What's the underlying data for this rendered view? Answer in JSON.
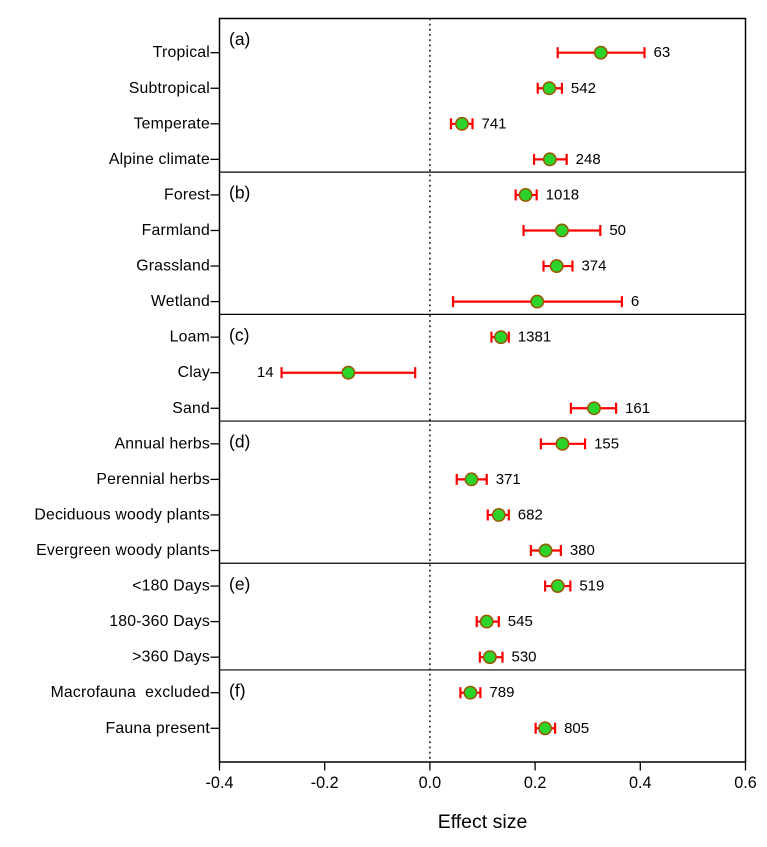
{
  "chart_data": {
    "type": "scatter",
    "subtype": "forest-plot-with-error-bars",
    "title": "",
    "xlabel": "Effect size",
    "xlim": [
      -0.4,
      0.6
    ],
    "xticks": [
      {
        "value": -0.4,
        "label": "-0.4"
      },
      {
        "value": -0.2,
        "label": "-0.2"
      },
      {
        "value": 0.0,
        "label": "0.0"
      },
      {
        "value": 0.2,
        "label": "0.2"
      },
      {
        "value": 0.4,
        "label": "0.4"
      },
      {
        "value": 0.6,
        "label": "0.6"
      }
    ],
    "zero_reference_line": 0.0,
    "grid": false,
    "legend": "none",
    "colors": {
      "error_bar": "#fe0000",
      "point_fill": "#2bd32b",
      "point_edge": "#995500",
      "axis": "#000000",
      "text": "#000000",
      "background": "#ffffff"
    },
    "panels": [
      {
        "tag": "(a)",
        "rows": [
          {
            "label": "Tropical",
            "est": 0.325,
            "lo": 0.243,
            "hi": 0.408,
            "n": "63",
            "n_side": "right"
          },
          {
            "label": "Subtropical",
            "est": 0.227,
            "lo": 0.205,
            "hi": 0.251,
            "n": "542",
            "n_side": "right"
          },
          {
            "label": "Temperate",
            "est": 0.061,
            "lo": 0.04,
            "hi": 0.081,
            "n": "741",
            "n_side": "right"
          },
          {
            "label": "Alpine climate",
            "est": 0.228,
            "lo": 0.198,
            "hi": 0.26,
            "n": "248",
            "n_side": "right"
          }
        ]
      },
      {
        "tag": "(b)",
        "rows": [
          {
            "label": "Forest",
            "est": 0.182,
            "lo": 0.163,
            "hi": 0.203,
            "n": "1018",
            "n_side": "right"
          },
          {
            "label": "Farmland",
            "est": 0.251,
            "lo": 0.178,
            "hi": 0.324,
            "n": "50",
            "n_side": "right"
          },
          {
            "label": "Grassland",
            "est": 0.241,
            "lo": 0.216,
            "hi": 0.271,
            "n": "374",
            "n_side": "right"
          },
          {
            "label": "Wetland",
            "est": 0.204,
            "lo": 0.044,
            "hi": 0.365,
            "n": "6",
            "n_side": "right"
          }
        ]
      },
      {
        "tag": "(c)",
        "rows": [
          {
            "label": "Loam",
            "est": 0.135,
            "lo": 0.117,
            "hi": 0.15,
            "n": "1381",
            "n_side": "right"
          },
          {
            "label": "Clay",
            "est": -0.155,
            "lo": -0.282,
            "hi": -0.028,
            "n": "14",
            "n_side": "left"
          },
          {
            "label": "Sand",
            "est": 0.312,
            "lo": 0.268,
            "hi": 0.354,
            "n": "161",
            "n_side": "right"
          }
        ]
      },
      {
        "tag": "(d)",
        "rows": [
          {
            "label": "Annual herbs",
            "est": 0.252,
            "lo": 0.211,
            "hi": 0.295,
            "n": "155",
            "n_side": "right"
          },
          {
            "label": "Perennial herbs",
            "est": 0.079,
            "lo": 0.051,
            "hi": 0.108,
            "n": "371",
            "n_side": "right"
          },
          {
            "label": "Deciduous woody plants",
            "est": 0.131,
            "lo": 0.11,
            "hi": 0.15,
            "n": "682",
            "n_side": "right"
          },
          {
            "label": "Evergreen woody plants",
            "est": 0.22,
            "lo": 0.192,
            "hi": 0.249,
            "n": "380",
            "n_side": "right"
          }
        ]
      },
      {
        "tag": "(e)",
        "rows": [
          {
            "label": "<180 Days",
            "est": 0.243,
            "lo": 0.219,
            "hi": 0.267,
            "n": "519",
            "n_side": "right"
          },
          {
            "label": "180-360 Days",
            "est": 0.108,
            "lo": 0.089,
            "hi": 0.131,
            "n": "545",
            "n_side": "right"
          },
          {
            "label": ">360 Days",
            "est": 0.114,
            "lo": 0.095,
            "hi": 0.138,
            "n": "530",
            "n_side": "right"
          }
        ]
      },
      {
        "tag": "(f)",
        "rows": [
          {
            "label": "Macrofauna  excluded",
            "est": 0.077,
            "lo": 0.058,
            "hi": 0.096,
            "n": "789",
            "n_side": "right"
          },
          {
            "label": "Fauna present",
            "est": 0.219,
            "lo": 0.201,
            "hi": 0.238,
            "n": "805",
            "n_side": "right"
          }
        ]
      }
    ]
  }
}
